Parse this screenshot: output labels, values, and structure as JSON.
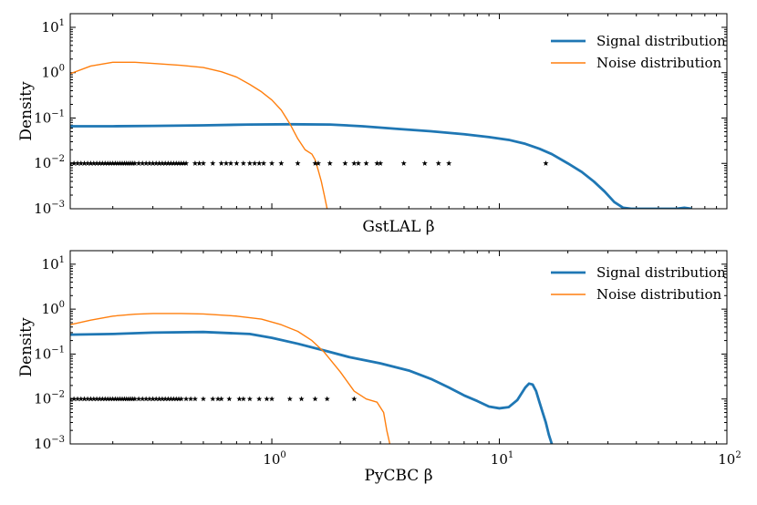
{
  "chart_data": [
    {
      "type": "line",
      "panel": "top",
      "xlabel": "GstLAL β",
      "ylabel": "Density",
      "xscale": "log",
      "yscale": "log",
      "xlim": [
        0.13,
        100
      ],
      "ylim": [
        0.001,
        20
      ],
      "y_ticks": [
        {
          "value": 0.001,
          "mant": "10",
          "exp": "−3"
        },
        {
          "value": 0.01,
          "mant": "10",
          "exp": "−2"
        },
        {
          "value": 0.1,
          "mant": "10",
          "exp": "−1"
        },
        {
          "value": 1,
          "mant": "10",
          "exp": "0"
        },
        {
          "value": 10,
          "mant": "10",
          "exp": "1"
        }
      ],
      "x_ticks": [],
      "legend_position": "top-right",
      "series": [
        {
          "name": "Signal distribution",
          "color": "#1f77b4",
          "line_width": "thick",
          "x": [
            0.13,
            0.2,
            0.3,
            0.5,
            0.8,
            1.2,
            1.8,
            2.5,
            3.5,
            5,
            7,
            9,
            11,
            13,
            15,
            17,
            20,
            23,
            26,
            29,
            32,
            35,
            38,
            40,
            45,
            50,
            55,
            60,
            65,
            70
          ],
          "y": [
            0.066,
            0.066,
            0.067,
            0.069,
            0.072,
            0.073,
            0.072,
            0.066,
            0.058,
            0.051,
            0.044,
            0.038,
            0.033,
            0.027,
            0.021,
            0.016,
            0.01,
            0.0065,
            0.004,
            0.0024,
            0.0014,
            0.00105,
            0.001,
            0.001,
            0.001,
            0.001,
            0.001,
            0.001,
            0.00105,
            0.001
          ]
        },
        {
          "name": "Noise distribution",
          "color": "#ff7f0e",
          "line_width": "thin",
          "x": [
            0.13,
            0.16,
            0.2,
            0.25,
            0.3,
            0.4,
            0.5,
            0.6,
            0.7,
            0.8,
            0.9,
            1.0,
            1.1,
            1.2,
            1.3,
            1.4,
            1.5,
            1.55,
            1.6,
            1.65,
            1.7,
            1.75
          ],
          "y": [
            0.95,
            1.4,
            1.7,
            1.7,
            1.6,
            1.45,
            1.3,
            1.05,
            0.8,
            0.55,
            0.38,
            0.25,
            0.15,
            0.075,
            0.035,
            0.02,
            0.016,
            0.012,
            0.007,
            0.004,
            0.002,
            0.001
          ]
        },
        {
          "name": "events",
          "type": "scatter",
          "marker": "star",
          "color": "#000000",
          "y_level": 0.01,
          "x": [
            0.13,
            0.135,
            0.14,
            0.145,
            0.15,
            0.155,
            0.16,
            0.165,
            0.17,
            0.175,
            0.18,
            0.185,
            0.19,
            0.195,
            0.2,
            0.205,
            0.21,
            0.215,
            0.22,
            0.225,
            0.23,
            0.235,
            0.24,
            0.245,
            0.25,
            0.26,
            0.27,
            0.28,
            0.29,
            0.3,
            0.31,
            0.32,
            0.33,
            0.34,
            0.35,
            0.36,
            0.37,
            0.38,
            0.39,
            0.4,
            0.41,
            0.42,
            0.46,
            0.48,
            0.5,
            0.55,
            0.6,
            0.63,
            0.66,
            0.7,
            0.75,
            0.8,
            0.84,
            0.88,
            0.92,
            1.0,
            1.1,
            1.3,
            1.55,
            1.6,
            1.8,
            2.1,
            2.3,
            2.4,
            2.6,
            2.9,
            3.0,
            3.8,
            4.7,
            5.4,
            6.0,
            16.0
          ]
        }
      ]
    },
    {
      "type": "line",
      "panel": "bottom",
      "xlabel": "PyCBC β",
      "ylabel": "Density",
      "xscale": "log",
      "yscale": "log",
      "xlim": [
        0.13,
        100
      ],
      "ylim": [
        0.001,
        20
      ],
      "y_ticks": [
        {
          "value": 0.001,
          "mant": "10",
          "exp": "−3"
        },
        {
          "value": 0.01,
          "mant": "10",
          "exp": "−2"
        },
        {
          "value": 0.1,
          "mant": "10",
          "exp": "−1"
        },
        {
          "value": 1,
          "mant": "10",
          "exp": "0"
        },
        {
          "value": 10,
          "mant": "10",
          "exp": "1"
        }
      ],
      "x_ticks": [
        {
          "value": 1,
          "mant": "10",
          "exp": "0"
        },
        {
          "value": 10,
          "mant": "10",
          "exp": "1"
        },
        {
          "value": 100,
          "mant": "10",
          "exp": "2"
        }
      ],
      "legend_position": "top-right",
      "series": [
        {
          "name": "Signal distribution",
          "color": "#1f77b4",
          "line_width": "thick",
          "x": [
            0.13,
            0.2,
            0.3,
            0.5,
            0.8,
            1.0,
            1.3,
            1.7,
            2.2,
            3,
            4,
            5,
            6,
            7,
            8,
            9,
            10,
            11,
            12,
            13,
            13.5,
            14,
            14.5,
            15,
            15.5,
            16,
            16.5,
            17
          ],
          "y": [
            0.27,
            0.28,
            0.3,
            0.31,
            0.28,
            0.23,
            0.17,
            0.12,
            0.085,
            0.062,
            0.043,
            0.028,
            0.018,
            0.012,
            0.009,
            0.0068,
            0.0062,
            0.0066,
            0.0095,
            0.018,
            0.022,
            0.021,
            0.015,
            0.0085,
            0.005,
            0.003,
            0.0016,
            0.001
          ]
        },
        {
          "name": "Noise distribution",
          "color": "#ff7f0e",
          "line_width": "thin",
          "x": [
            0.13,
            0.16,
            0.2,
            0.25,
            0.3,
            0.4,
            0.5,
            0.7,
            0.9,
            1.1,
            1.3,
            1.5,
            1.7,
            2.0,
            2.3,
            2.6,
            2.9,
            3.1,
            3.2,
            3.3
          ],
          "y": [
            0.45,
            0.57,
            0.7,
            0.77,
            0.8,
            0.8,
            0.78,
            0.7,
            0.6,
            0.45,
            0.32,
            0.2,
            0.11,
            0.04,
            0.015,
            0.01,
            0.0085,
            0.005,
            0.002,
            0.001
          ]
        },
        {
          "name": "events",
          "type": "scatter",
          "marker": "star",
          "color": "#000000",
          "y_level": 0.01,
          "x": [
            0.13,
            0.135,
            0.14,
            0.145,
            0.15,
            0.155,
            0.16,
            0.165,
            0.17,
            0.175,
            0.18,
            0.185,
            0.19,
            0.195,
            0.2,
            0.205,
            0.21,
            0.215,
            0.22,
            0.225,
            0.23,
            0.235,
            0.24,
            0.245,
            0.25,
            0.26,
            0.27,
            0.28,
            0.29,
            0.3,
            0.31,
            0.32,
            0.33,
            0.34,
            0.35,
            0.36,
            0.37,
            0.38,
            0.39,
            0.4,
            0.42,
            0.44,
            0.46,
            0.5,
            0.55,
            0.58,
            0.6,
            0.65,
            0.72,
            0.75,
            0.8,
            0.88,
            0.95,
            1.0,
            1.2,
            1.35,
            1.55,
            1.75,
            2.3
          ]
        }
      ]
    }
  ]
}
